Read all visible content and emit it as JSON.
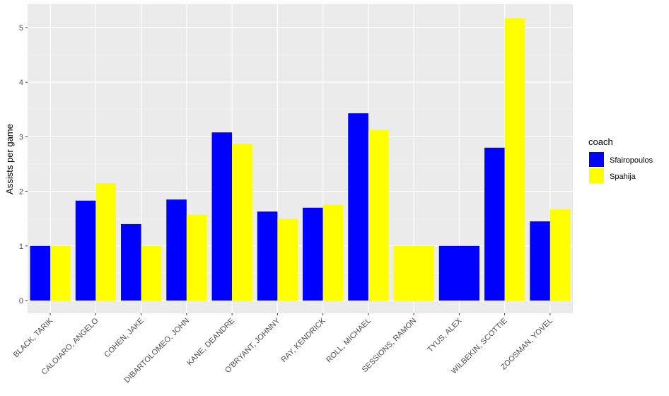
{
  "chart_data": {
    "type": "bar",
    "title": "",
    "xlabel": "",
    "ylabel": "Assists per game",
    "ylim": [
      0,
      5.25
    ],
    "yticks": [
      0,
      1,
      2,
      3,
      4,
      5
    ],
    "grid": true,
    "legend_position": "right",
    "legend_title": "coach",
    "categories": [
      "BLACK, TARIK",
      "CALOIARO, ANGELO",
      "COHEN, JAKE",
      "DIBARTOLOMEO, JOHN",
      "KANE, DEANDRE",
      "O'BRYANT, JOHNNY",
      "RAY, KENDRICK",
      "ROLL, MICHAEL",
      "SESSIONS, RAMON",
      "TYUS, ALEX",
      "WILBEKIN, SCOTTIE",
      "ZOOSMAN, YOVEL"
    ],
    "series": [
      {
        "name": "Sfairopoulos",
        "color": "#0000ff",
        "values": [
          1.0,
          1.83,
          1.4,
          1.85,
          3.08,
          1.63,
          1.7,
          3.43,
          null,
          1.0,
          2.8,
          1.45
        ]
      },
      {
        "name": "Spahija",
        "color": "#ffff00",
        "values": [
          1.0,
          2.15,
          1.0,
          1.57,
          2.87,
          1.5,
          1.75,
          3.12,
          1.0,
          null,
          5.17,
          1.67
        ]
      }
    ]
  }
}
